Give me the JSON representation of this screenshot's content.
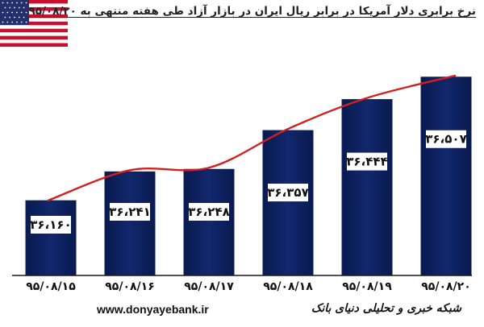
{
  "header": {
    "title": "نرخ برابری دلار آمریکا در برابر ریال ایران در بازار آزاد طی هفته منتهی به ۹۵/۰۸/۲۰"
  },
  "flag": {
    "icon": "us-flag-icon"
  },
  "colors": {
    "bar": "#0b1f5c",
    "bar_highlight": "#3a4f8e",
    "trend_line": "#d41f1f",
    "label_box": "#ffffff",
    "baseline": "#1a1a1a"
  },
  "chart_data": {
    "type": "bar",
    "categories": [
      "۹۵/۰۸/۱۵",
      "۹۵/۰۸/۱۶",
      "۹۵/۰۸/۱۷",
      "۹۵/۰۸/۱۸",
      "۹۵/۰۸/۱۹",
      "۹۵/۰۸/۲۰"
    ],
    "values": [
      36160,
      36241,
      36248,
      36357,
      36444,
      36507
    ],
    "value_labels": [
      "۳۶،۱۶۰",
      "۳۶،۲۴۱",
      "۳۶،۲۴۸",
      "۳۶،۳۵۷",
      "۳۶،۴۴۴",
      "۳۶،۵۰۷"
    ],
    "title": "",
    "xlabel": "",
    "ylabel": "",
    "ylim": [
      35950,
      36520
    ],
    "grid": false,
    "legend": "none",
    "overlay": "smoothed trend line through bar tops"
  },
  "footer": {
    "website": "www.donyayebank.ir",
    "network": "شبکه خبری و تحلیلی دنیای بانک"
  }
}
